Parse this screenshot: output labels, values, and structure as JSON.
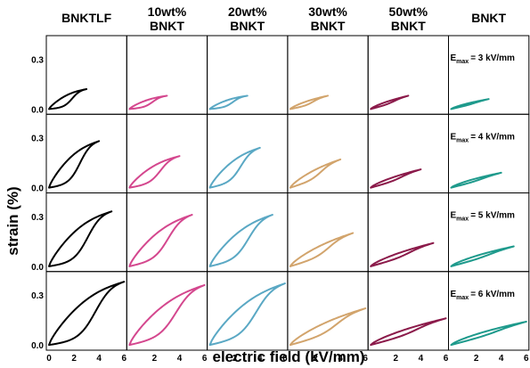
{
  "figure": {
    "ylabel": "strain (%)",
    "xlabel": "electric field (kV/mm)",
    "y_ticks": [
      "0.0",
      "0.3"
    ],
    "x_ticks": [
      "0",
      "2",
      "4",
      "6"
    ]
  },
  "chart_data": {
    "type": "line",
    "xlabel": "electric field (kV/mm)",
    "ylabel": "strain (%)",
    "xlim": [
      0,
      6
    ],
    "ylim": [
      -0.01,
      0.42
    ],
    "compositions": [
      {
        "name": "BNKTLF",
        "title_lines": [
          "BNKTLF"
        ],
        "color": "#000000"
      },
      {
        "name": "10wt% BNKT",
        "title_lines": [
          "10wt%",
          "BNKT"
        ],
        "color": "#d4478e"
      },
      {
        "name": "20wt% BNKT",
        "title_lines": [
          "20wt%",
          "BNKT"
        ],
        "color": "#5aa8c4"
      },
      {
        "name": "30wt% BNKT",
        "title_lines": [
          "30wt%",
          "BNKT"
        ],
        "color": "#d2a46c"
      },
      {
        "name": "50wt% BNKT",
        "title_lines": [
          "50wt%",
          "BNKT"
        ],
        "color": "#8b1a4a"
      },
      {
        "name": "BNKT",
        "title_lines": [
          "BNKT"
        ],
        "color": "#1e9a8c"
      }
    ],
    "rows": [
      {
        "emax_text": "= 3 kV/mm",
        "emax": 3,
        "peak_strain": [
          0.12,
          0.08,
          0.08,
          0.08,
          0.08,
          0.06
        ]
      },
      {
        "emax_text": "= 4 kV/mm",
        "emax": 4,
        "peak_strain": [
          0.28,
          0.19,
          0.24,
          0.17,
          0.11,
          0.09
        ]
      },
      {
        "emax_text": "= 5 kV/mm",
        "emax": 5,
        "peak_strain": [
          0.33,
          0.31,
          0.31,
          0.2,
          0.14,
          0.12
        ]
      },
      {
        "emax_text": "= 6 kV/mm",
        "emax": 6,
        "peak_strain": [
          0.38,
          0.36,
          0.37,
          0.22,
          0.16,
          0.14
        ]
      }
    ],
    "emax_symbol": "E",
    "emax_subscript": "max",
    "grid": false
  }
}
